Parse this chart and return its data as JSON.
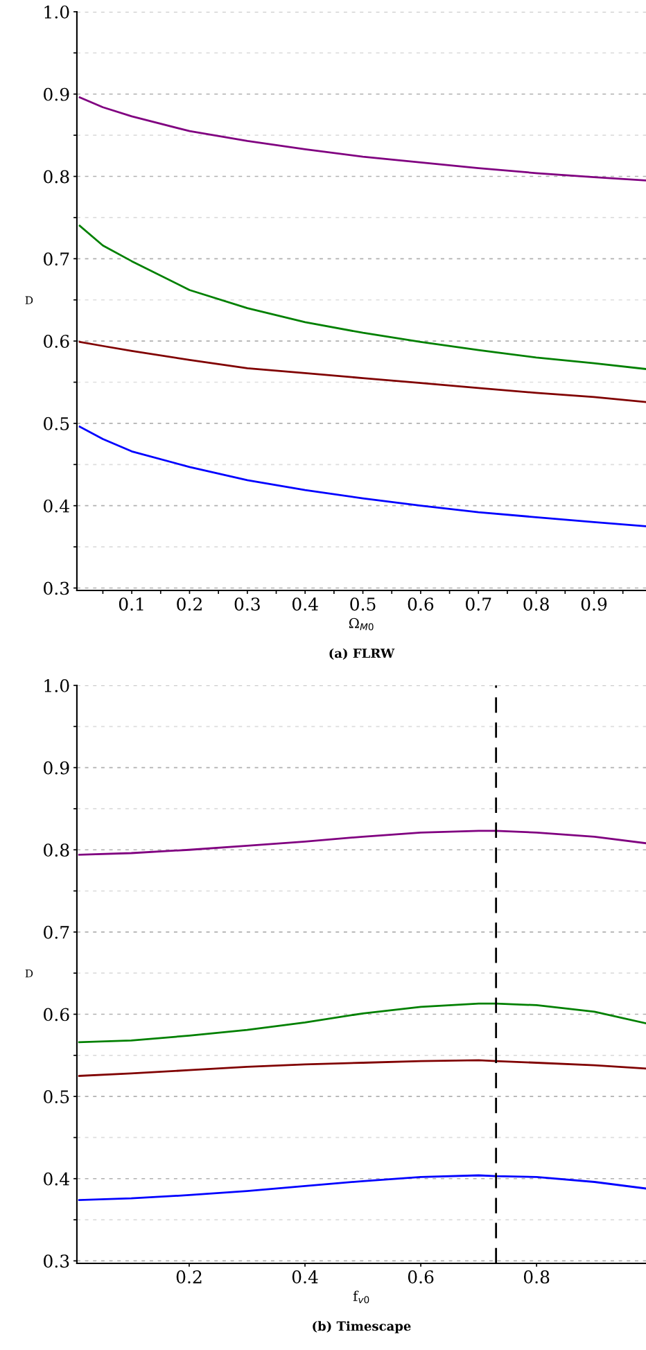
{
  "chart_data": [
    {
      "type": "line",
      "title": "(a) FLRW",
      "xlabel": "Ω$_{M0}$",
      "ylabel": "D",
      "xlim": [
        0.005,
        0.99
      ],
      "ylim": [
        0.297,
        1.0
      ],
      "xticks": [
        {
          "value": 0.05,
          "label": null
        },
        0.1,
        {
          "value": 0.15,
          "label": null
        },
        0.2,
        {
          "value": 0.25,
          "label": null
        },
        0.3,
        {
          "value": 0.35,
          "label": null
        },
        0.4,
        {
          "value": 0.45,
          "label": null
        },
        0.5,
        {
          "value": 0.55,
          "label": null
        },
        0.6,
        {
          "value": 0.65,
          "label": null
        },
        0.7,
        {
          "value": 0.75,
          "label": null
        },
        0.8,
        {
          "value": 0.85,
          "label": null
        },
        0.9,
        {
          "value": 0.95,
          "label": null
        }
      ],
      "yticks": [
        0.3,
        {
          "value": 0.35,
          "label": null
        },
        0.4,
        {
          "value": 0.45,
          "label": null
        },
        0.5,
        {
          "value": 0.55,
          "label": null
        },
        0.6,
        {
          "value": 0.65,
          "label": null
        },
        0.7,
        {
          "value": 0.75,
          "label": null
        },
        0.8,
        {
          "value": 0.85,
          "label": null
        },
        0.9,
        {
          "value": 0.95,
          "label": null
        },
        {
          "value": 1.0,
          "label": "1.0"
        }
      ],
      "grid": "y",
      "x": [
        0.01,
        0.05,
        0.1,
        0.2,
        0.3,
        0.4,
        0.5,
        0.6,
        0.7,
        0.8,
        0.9,
        0.99
      ],
      "series": [
        {
          "color": "#800080",
          "values": [
            0.896,
            0.884,
            0.873,
            0.855,
            0.843,
            0.833,
            0.824,
            0.817,
            0.81,
            0.804,
            0.799,
            0.795
          ]
        },
        {
          "color": "#008000",
          "values": [
            0.74,
            0.716,
            0.697,
            0.662,
            0.64,
            0.623,
            0.61,
            0.599,
            0.589,
            0.58,
            0.573,
            0.566
          ]
        },
        {
          "color": "#800000",
          "values": [
            0.599,
            0.594,
            0.588,
            0.577,
            0.567,
            0.561,
            0.555,
            0.549,
            0.543,
            0.537,
            0.532,
            0.526
          ]
        },
        {
          "color": "#0000ff",
          "values": [
            0.496,
            0.481,
            0.466,
            0.447,
            0.431,
            0.419,
            0.409,
            0.4,
            0.392,
            0.386,
            0.38,
            0.375
          ]
        }
      ]
    },
    {
      "type": "line",
      "title": "(b) Timescape",
      "xlabel": "f$_{v0}$",
      "ylabel": "D",
      "xlim": [
        0.006,
        0.989
      ],
      "ylim": [
        0.297,
        1.0
      ],
      "xticks": [
        0.2,
        0.4,
        0.6,
        0.8
      ],
      "yticks": [
        0.3,
        {
          "value": 0.35,
          "label": null
        },
        0.4,
        {
          "value": 0.45,
          "label": null
        },
        0.5,
        {
          "value": 0.55,
          "label": null
        },
        0.6,
        {
          "value": 0.65,
          "label": null
        },
        0.7,
        {
          "value": 0.75,
          "label": null
        },
        0.8,
        {
          "value": 0.85,
          "label": null
        },
        0.9,
        {
          "value": 0.95,
          "label": null
        },
        {
          "value": 1.0,
          "label": "1.0"
        }
      ],
      "grid": "y",
      "x": [
        0.01,
        0.1,
        0.2,
        0.3,
        0.4,
        0.5,
        0.6,
        0.7,
        0.73,
        0.8,
        0.9,
        0.989
      ],
      "ref_lines": [
        {
          "axis": "x",
          "value": 0.73,
          "color": "#000000",
          "line_style": "dashed"
        }
      ],
      "series": [
        {
          "color": "#800080",
          "values": [
            0.794,
            0.796,
            0.8,
            0.805,
            0.81,
            0.816,
            0.821,
            0.823,
            0.823,
            0.821,
            0.816,
            0.808
          ]
        },
        {
          "color": "#008000",
          "values": [
            0.566,
            0.568,
            0.574,
            0.581,
            0.59,
            0.601,
            0.609,
            0.613,
            0.613,
            0.611,
            0.603,
            0.589
          ]
        },
        {
          "color": "#800000",
          "values": [
            0.525,
            0.528,
            0.532,
            0.536,
            0.539,
            0.541,
            0.543,
            0.544,
            0.543,
            0.541,
            0.538,
            0.534
          ]
        },
        {
          "color": "#0000ff",
          "values": [
            0.374,
            0.376,
            0.38,
            0.385,
            0.391,
            0.397,
            0.402,
            0.404,
            0.403,
            0.402,
            0.396,
            0.388
          ]
        }
      ]
    }
  ]
}
